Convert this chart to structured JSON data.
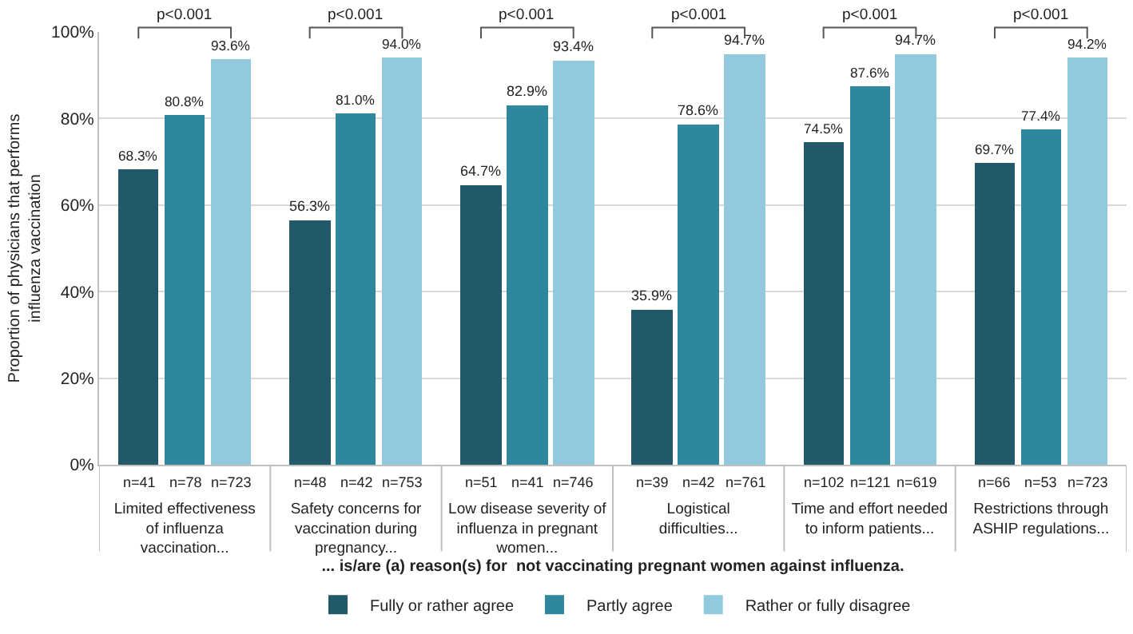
{
  "chart_data": {
    "type": "bar",
    "categories": [
      "Limited effectiveness of influenza vaccination...",
      "Safety concerns for vaccination during pregnancy...",
      "Low disease severity of influenza in pregnant women...",
      "Logistical difficulties...",
      "Time and effort needed to inform patients...",
      "Restrictions through ASHIP regulations..."
    ],
    "series": [
      {
        "name": "Fully or rather agree",
        "color": "#22596a",
        "values": [
          68.3,
          56.3,
          64.7,
          35.9,
          74.5,
          69.7
        ],
        "value_labels": [
          "68.3%",
          "56.3%",
          "64.7%",
          "35.9%",
          "74.5%",
          "69.7%"
        ]
      },
      {
        "name": "Partly agree",
        "color": "#2e879c",
        "values": [
          80.8,
          81.0,
          82.9,
          78.6,
          87.6,
          77.4
        ],
        "value_labels": [
          "80.8%",
          "81.0%",
          "82.9%",
          "78.6%",
          "87.6%",
          "77.4%"
        ]
      },
      {
        "name": "Rather or fully disagree",
        "color": "#92c9dc",
        "values": [
          93.6,
          94.0,
          93.4,
          94.7,
          94.7,
          94.2
        ],
        "value_labels": [
          "93.6%",
          "94.0%",
          "93.4%",
          "94.7%",
          "94.7%",
          "94.2%"
        ]
      }
    ],
    "xlabel": "... is/are (a) reason(s) for  not vaccinating pregnant women against influenza.",
    "ylabel": "Proportion of physicians that performs influenza vaccination",
    "ylim": [
      0,
      100
    ],
    "yticks": [
      {
        "value": 0,
        "label": "0%"
      },
      {
        "value": 20,
        "label": "20%"
      },
      {
        "value": 40,
        "label": "40%"
      },
      {
        "value": 60,
        "label": "60%"
      },
      {
        "value": 80,
        "label": "80%"
      },
      {
        "value": 100,
        "label": "100%"
      }
    ],
    "grid": "y",
    "legend": "bottom",
    "annotations": [
      "p<0.001",
      "p<0.001",
      "p<0.001",
      "p<0.001",
      "p<0.001",
      "p<0.001",
      "n=41",
      "n=78",
      "n=723",
      "n=48",
      "n=42",
      "n=753",
      "n=51",
      "n=41",
      "n=746",
      "n=39",
      "n=42",
      "n=761",
      "n=102",
      "n=121",
      "n=619",
      "n=66",
      "n=53",
      "n=723"
    ]
  }
}
